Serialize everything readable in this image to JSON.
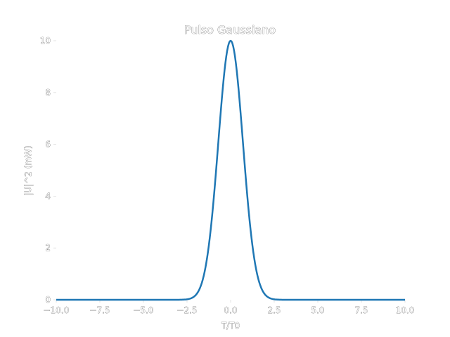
{
  "chart_data": {
    "type": "line",
    "title": "Pulso Gaussiano",
    "xlabel": "T/T0",
    "ylabel": "|U|^2 (mW)",
    "xlim": [
      -10.0,
      10.0
    ],
    "ylim": [
      0,
      10
    ],
    "x_ticks": [
      "−10.0",
      "−7.5",
      "−5.0",
      "−2.5",
      "0.0",
      "2.5",
      "5.0",
      "7.5",
      "10.0"
    ],
    "y_ticks": [
      "0",
      "2",
      "4",
      "6",
      "8",
      "10"
    ],
    "grid": false,
    "series": [
      {
        "color": "#1f77b4",
        "function": "10*exp(-x^2)",
        "x": [
          -10.0,
          -3.0,
          -2.5,
          -2.25,
          -2.0,
          -1.75,
          -1.5,
          -1.25,
          -1.0,
          -0.75,
          -0.5,
          -0.25,
          0.0,
          0.25,
          0.5,
          0.75,
          1.0,
          1.25,
          1.5,
          1.75,
          2.0,
          2.25,
          2.5,
          3.0,
          10.0
        ],
        "values": [
          0.0,
          0.0012,
          0.019,
          0.063,
          0.183,
          0.468,
          1.054,
          2.096,
          3.679,
          5.698,
          7.788,
          9.394,
          10.0,
          9.394,
          7.788,
          5.698,
          3.679,
          2.096,
          1.054,
          0.468,
          0.183,
          0.063,
          0.019,
          0.0012,
          0.0
        ]
      }
    ]
  }
}
